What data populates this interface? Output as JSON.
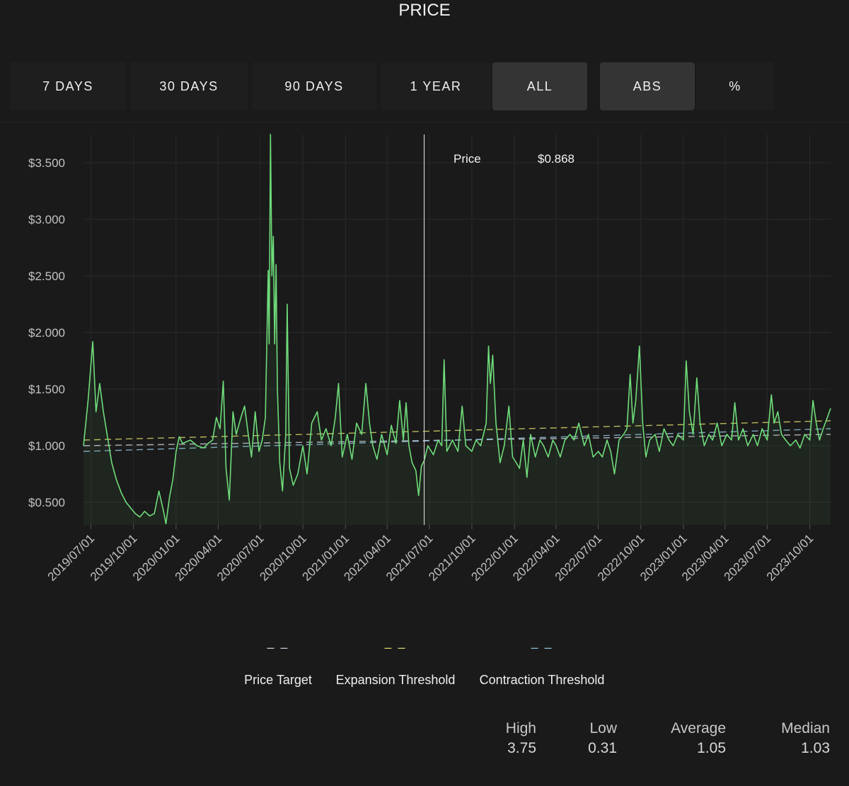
{
  "title": "PRICE",
  "range_buttons": [
    {
      "label": "7 DAYS",
      "active": false
    },
    {
      "label": "30 DAYS",
      "active": false
    },
    {
      "label": "90 DAYS",
      "active": false
    },
    {
      "label": "1 YEAR",
      "active": false
    },
    {
      "label": "ALL",
      "active": true
    }
  ],
  "mode_buttons": [
    {
      "label": "ABS",
      "active": true
    },
    {
      "label": "%",
      "active": false
    }
  ],
  "tooltip": {
    "label": "Price",
    "value": "$0.868"
  },
  "legend": [
    {
      "label": "Price Target",
      "color": "#c9c9d6"
    },
    {
      "label": "Expansion Threshold",
      "color": "#d8d66a"
    },
    {
      "label": "Contraction Threshold",
      "color": "#8fbfd9"
    }
  ],
  "stats": [
    {
      "label": "High",
      "value": "3.75"
    },
    {
      "label": "Low",
      "value": "0.31"
    },
    {
      "label": "Average",
      "value": "1.05"
    },
    {
      "label": "Median",
      "value": "1.03"
    }
  ],
  "chart_data": {
    "type": "line",
    "title": "PRICE",
    "xlabel": "",
    "ylabel": "",
    "ylim": [
      0.3,
      3.75
    ],
    "xlim": [
      "2019-06-15",
      "2023-11-15"
    ],
    "y_ticks": [
      {
        "value": 0.5,
        "label": "$0.500"
      },
      {
        "value": 1.0,
        "label": "$1.000"
      },
      {
        "value": 1.5,
        "label": "$1.500"
      },
      {
        "value": 2.0,
        "label": "$2.000"
      },
      {
        "value": 2.5,
        "label": "$2.500"
      },
      {
        "value": 3.0,
        "label": "$3.000"
      },
      {
        "value": 3.5,
        "label": "$3.500"
      }
    ],
    "x_ticks": [
      "2019/07/01",
      "2019/10/01",
      "2020/01/01",
      "2020/04/01",
      "2020/07/01",
      "2020/10/01",
      "2021/01/01",
      "2021/04/01",
      "2021/07/01",
      "2021/10/01",
      "2022/01/01",
      "2022/04/01",
      "2022/07/01",
      "2022/10/01",
      "2023/01/01",
      "2023/04/01",
      "2023/07/01",
      "2023/10/01"
    ],
    "cursor_date": "2021-06-20",
    "series": [
      {
        "name": "Price",
        "color": "#6fdc7a",
        "points": [
          [
            "2019-06-15",
            1.0
          ],
          [
            "2019-06-25",
            1.4
          ],
          [
            "2019-07-05",
            1.92
          ],
          [
            "2019-07-12",
            1.3
          ],
          [
            "2019-07-20",
            1.55
          ],
          [
            "2019-07-28",
            1.3
          ],
          [
            "2019-08-05",
            1.1
          ],
          [
            "2019-08-15",
            0.85
          ],
          [
            "2019-08-25",
            0.7
          ],
          [
            "2019-09-05",
            0.58
          ],
          [
            "2019-09-15",
            0.5
          ],
          [
            "2019-09-25",
            0.45
          ],
          [
            "2019-10-05",
            0.4
          ],
          [
            "2019-10-15",
            0.37
          ],
          [
            "2019-10-25",
            0.42
          ],
          [
            "2019-11-05",
            0.38
          ],
          [
            "2019-11-15",
            0.4
          ],
          [
            "2019-11-25",
            0.6
          ],
          [
            "2019-12-05",
            0.42
          ],
          [
            "2019-12-10",
            0.31
          ],
          [
            "2019-12-18",
            0.55
          ],
          [
            "2019-12-25",
            0.7
          ],
          [
            "2020-01-01",
            0.95
          ],
          [
            "2020-01-08",
            1.08
          ],
          [
            "2020-01-15",
            1.02
          ],
          [
            "2020-02-01",
            1.05
          ],
          [
            "2020-02-15",
            1.0
          ],
          [
            "2020-03-01",
            0.98
          ],
          [
            "2020-03-10",
            1.02
          ],
          [
            "2020-03-20",
            1.05
          ],
          [
            "2020-03-28",
            1.25
          ],
          [
            "2020-04-05",
            1.15
          ],
          [
            "2020-04-12",
            1.57
          ],
          [
            "2020-04-18",
            0.8
          ],
          [
            "2020-04-25",
            0.52
          ],
          [
            "2020-05-03",
            1.3
          ],
          [
            "2020-05-10",
            1.1
          ],
          [
            "2020-05-20",
            1.25
          ],
          [
            "2020-05-28",
            1.35
          ],
          [
            "2020-06-05",
            1.1
          ],
          [
            "2020-06-12",
            0.9
          ],
          [
            "2020-06-20",
            1.3
          ],
          [
            "2020-06-28",
            0.95
          ],
          [
            "2020-07-05",
            1.05
          ],
          [
            "2020-07-12",
            1.25
          ],
          [
            "2020-07-18",
            2.55
          ],
          [
            "2020-07-20",
            1.9
          ],
          [
            "2020-07-23",
            3.75
          ],
          [
            "2020-07-26",
            2.5
          ],
          [
            "2020-07-29",
            2.85
          ],
          [
            "2020-08-01",
            1.9
          ],
          [
            "2020-08-04",
            2.6
          ],
          [
            "2020-08-07",
            1.5
          ],
          [
            "2020-08-12",
            0.85
          ],
          [
            "2020-08-18",
            0.6
          ],
          [
            "2020-08-25",
            1.1
          ],
          [
            "2020-08-28",
            2.25
          ],
          [
            "2020-09-02",
            0.8
          ],
          [
            "2020-09-10",
            0.65
          ],
          [
            "2020-09-20",
            0.75
          ],
          [
            "2020-10-01",
            1.0
          ],
          [
            "2020-10-10",
            0.75
          ],
          [
            "2020-10-20",
            1.2
          ],
          [
            "2020-11-01",
            1.3
          ],
          [
            "2020-11-10",
            1.05
          ],
          [
            "2020-11-20",
            1.15
          ],
          [
            "2020-12-01",
            1.0
          ],
          [
            "2020-12-10",
            1.25
          ],
          [
            "2020-12-17",
            1.55
          ],
          [
            "2020-12-25",
            0.9
          ],
          [
            "2021-01-05",
            1.1
          ],
          [
            "2021-01-15",
            0.88
          ],
          [
            "2021-01-25",
            1.2
          ],
          [
            "2021-02-05",
            1.1
          ],
          [
            "2021-02-14",
            1.55
          ],
          [
            "2021-02-22",
            1.2
          ],
          [
            "2021-03-01",
            1.0
          ],
          [
            "2021-03-10",
            0.88
          ],
          [
            "2021-03-20",
            1.1
          ],
          [
            "2021-04-01",
            0.92
          ],
          [
            "2021-04-10",
            1.18
          ],
          [
            "2021-04-20",
            1.02
          ],
          [
            "2021-04-28",
            1.4
          ],
          [
            "2021-05-06",
            1.05
          ],
          [
            "2021-05-12",
            1.38
          ],
          [
            "2021-05-18",
            1.0
          ],
          [
            "2021-05-25",
            0.85
          ],
          [
            "2021-06-02",
            0.78
          ],
          [
            "2021-06-08",
            0.56
          ],
          [
            "2021-06-14",
            0.82
          ],
          [
            "2021-06-20",
            0.868
          ],
          [
            "2021-06-28",
            1.0
          ],
          [
            "2021-07-10",
            0.92
          ],
          [
            "2021-07-20",
            1.05
          ],
          [
            "2021-07-28",
            1.0
          ],
          [
            "2021-08-02",
            1.76
          ],
          [
            "2021-08-08",
            0.95
          ],
          [
            "2021-08-20",
            1.05
          ],
          [
            "2021-09-01",
            0.95
          ],
          [
            "2021-09-10",
            1.35
          ],
          [
            "2021-09-18",
            1.0
          ],
          [
            "2021-10-01",
            0.95
          ],
          [
            "2021-10-10",
            1.05
          ],
          [
            "2021-10-20",
            1.0
          ],
          [
            "2021-11-01",
            1.2
          ],
          [
            "2021-11-06",
            1.88
          ],
          [
            "2021-11-10",
            1.55
          ],
          [
            "2021-11-15",
            1.8
          ],
          [
            "2021-11-22",
            1.2
          ],
          [
            "2021-12-01",
            0.85
          ],
          [
            "2021-12-10",
            1.0
          ],
          [
            "2021-12-20",
            1.35
          ],
          [
            "2021-12-28",
            0.9
          ],
          [
            "2022-01-05",
            0.85
          ],
          [
            "2022-01-12",
            0.8
          ],
          [
            "2022-01-20",
            1.05
          ],
          [
            "2022-01-28",
            0.72
          ],
          [
            "2022-02-05",
            1.1
          ],
          [
            "2022-02-15",
            0.9
          ],
          [
            "2022-02-25",
            1.05
          ],
          [
            "2022-03-05",
            1.0
          ],
          [
            "2022-03-15",
            0.9
          ],
          [
            "2022-03-25",
            1.05
          ],
          [
            "2022-04-01",
            1.0
          ],
          [
            "2022-04-10",
            0.9
          ],
          [
            "2022-04-20",
            1.05
          ],
          [
            "2022-05-01",
            1.1
          ],
          [
            "2022-05-10",
            1.05
          ],
          [
            "2022-05-20",
            1.2
          ],
          [
            "2022-06-01",
            1.0
          ],
          [
            "2022-06-10",
            1.1
          ],
          [
            "2022-06-20",
            0.9
          ],
          [
            "2022-07-01",
            0.95
          ],
          [
            "2022-07-10",
            0.9
          ],
          [
            "2022-07-20",
            1.05
          ],
          [
            "2022-07-28",
            0.95
          ],
          [
            "2022-08-05",
            0.75
          ],
          [
            "2022-08-15",
            1.05
          ],
          [
            "2022-08-25",
            1.1
          ],
          [
            "2022-09-01",
            1.15
          ],
          [
            "2022-09-08",
            1.63
          ],
          [
            "2022-09-14",
            1.2
          ],
          [
            "2022-09-20",
            1.4
          ],
          [
            "2022-09-28",
            1.88
          ],
          [
            "2022-10-05",
            1.2
          ],
          [
            "2022-10-12",
            0.9
          ],
          [
            "2022-10-20",
            1.05
          ],
          [
            "2022-11-01",
            1.1
          ],
          [
            "2022-11-10",
            0.95
          ],
          [
            "2022-11-20",
            1.15
          ],
          [
            "2022-12-01",
            1.05
          ],
          [
            "2022-12-10",
            1.0
          ],
          [
            "2022-12-20",
            1.1
          ],
          [
            "2023-01-01",
            1.05
          ],
          [
            "2023-01-07",
            1.75
          ],
          [
            "2023-01-14",
            1.3
          ],
          [
            "2023-01-22",
            1.1
          ],
          [
            "2023-01-30",
            1.6
          ],
          [
            "2023-02-06",
            1.2
          ],
          [
            "2023-02-15",
            1.0
          ],
          [
            "2023-02-25",
            1.1
          ],
          [
            "2023-03-05",
            1.05
          ],
          [
            "2023-03-15",
            1.2
          ],
          [
            "2023-03-25",
            1.0
          ],
          [
            "2023-04-05",
            1.1
          ],
          [
            "2023-04-15",
            1.05
          ],
          [
            "2023-04-22",
            1.38
          ],
          [
            "2023-04-30",
            1.05
          ],
          [
            "2023-05-10",
            1.15
          ],
          [
            "2023-05-20",
            1.0
          ],
          [
            "2023-06-01",
            1.1
          ],
          [
            "2023-06-10",
            1.0
          ],
          [
            "2023-06-20",
            1.15
          ],
          [
            "2023-07-01",
            1.05
          ],
          [
            "2023-07-10",
            1.45
          ],
          [
            "2023-07-16",
            1.2
          ],
          [
            "2023-07-24",
            1.3
          ],
          [
            "2023-08-01",
            1.1
          ],
          [
            "2023-08-10",
            1.05
          ],
          [
            "2023-08-20",
            1.0
          ],
          [
            "2023-09-01",
            1.05
          ],
          [
            "2023-09-10",
            0.98
          ],
          [
            "2023-09-20",
            1.1
          ],
          [
            "2023-10-01",
            1.05
          ],
          [
            "2023-10-08",
            1.4
          ],
          [
            "2023-10-15",
            1.2
          ],
          [
            "2023-10-22",
            1.05
          ],
          [
            "2023-10-30",
            1.15
          ],
          [
            "2023-11-08",
            1.25
          ],
          [
            "2023-11-15",
            1.33
          ]
        ]
      },
      {
        "name": "Price Target",
        "color": "#c9c9d6",
        "dashed": true,
        "points": [
          [
            "2019-06-15",
            1.0
          ],
          [
            "2023-11-15",
            1.1
          ]
        ]
      },
      {
        "name": "Expansion Threshold",
        "color": "#d8d66a",
        "dashed": true,
        "points": [
          [
            "2019-06-15",
            1.05
          ],
          [
            "2023-11-15",
            1.22
          ]
        ]
      },
      {
        "name": "Contraction Threshold",
        "color": "#8fbfd9",
        "dashed": true,
        "points": [
          [
            "2019-06-15",
            0.95
          ],
          [
            "2023-11-15",
            1.15
          ]
        ]
      }
    ]
  }
}
